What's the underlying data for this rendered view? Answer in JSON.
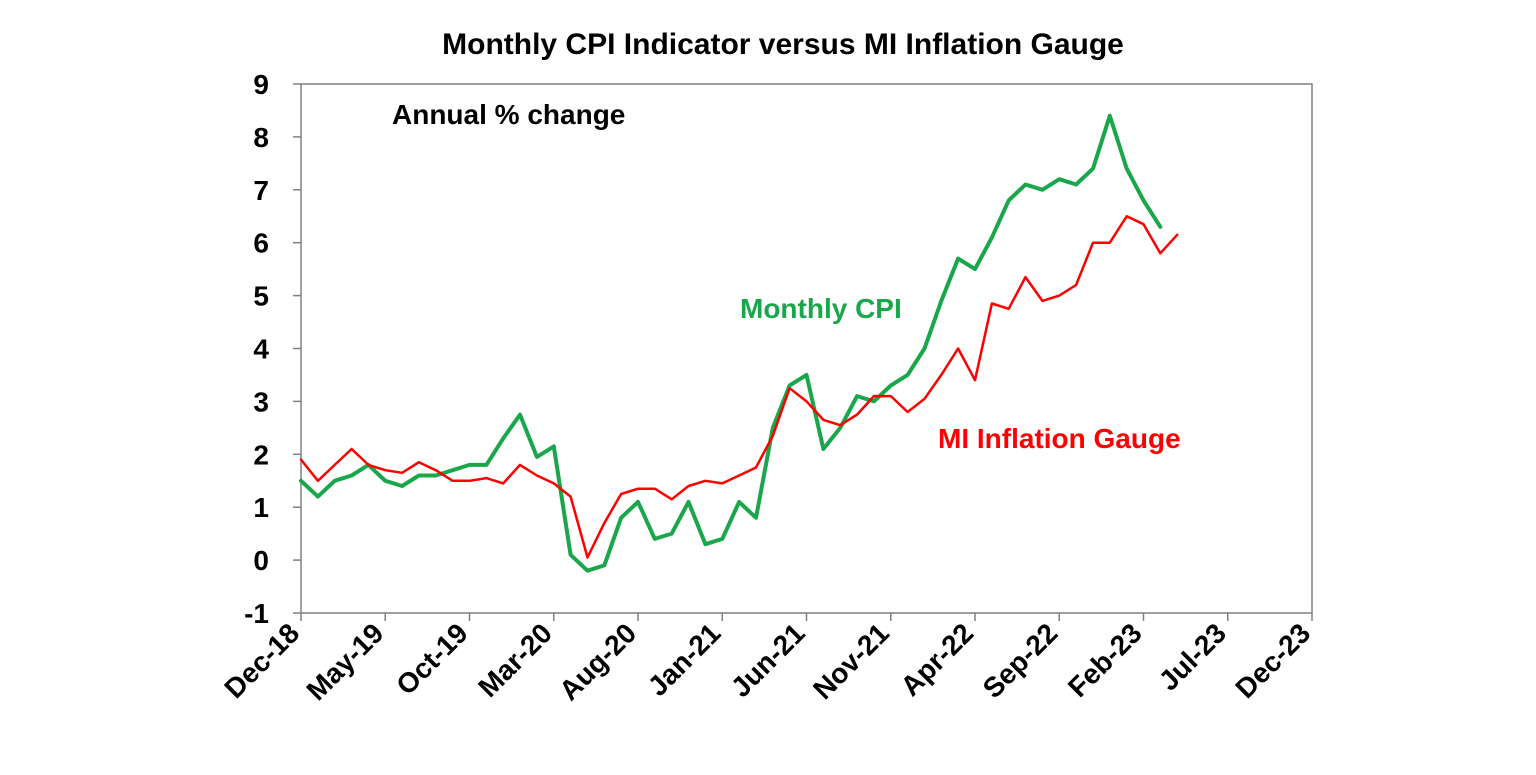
{
  "chart_data": {
    "type": "line",
    "title": "Monthly CPI Indicator versus MI Inflation Gauge",
    "annotation": "Annual % change",
    "ylim": [
      -1,
      9
    ],
    "yticks": [
      -1,
      0,
      1,
      2,
      3,
      4,
      5,
      6,
      7,
      8,
      9
    ],
    "xlim": [
      "Dec-18",
      "Dec-23"
    ],
    "xticks": [
      "Dec-18",
      "May-19",
      "Oct-19",
      "Mar-20",
      "Aug-20",
      "Jan-21",
      "Jun-21",
      "Nov-21",
      "Apr-22",
      "Sep-22",
      "Feb-23",
      "Jul-23",
      "Dec-23"
    ],
    "grid": false,
    "series": [
      {
        "name": "Monthly CPI",
        "color": "#1aa64a",
        "start": "Dec-18",
        "values": [
          1.5,
          1.2,
          1.5,
          1.6,
          1.8,
          1.5,
          1.4,
          1.6,
          1.6,
          1.7,
          1.8,
          1.8,
          2.3,
          2.75,
          1.95,
          2.15,
          0.1,
          -0.2,
          -0.1,
          0.8,
          1.1,
          0.4,
          0.5,
          1.1,
          0.3,
          0.4,
          1.1,
          0.8,
          2.5,
          3.3,
          3.5,
          2.1,
          2.5,
          3.1,
          3.0,
          3.3,
          3.5,
          4.0,
          4.9,
          5.7,
          5.5,
          6.1,
          6.8,
          7.1,
          7.0,
          7.2,
          7.1,
          7.4,
          8.4,
          7.4,
          6.8,
          6.3
        ]
      },
      {
        "name": "MI Inflation Gauge",
        "color": "#ff0000",
        "start": "Dec-18",
        "values": [
          1.9,
          1.5,
          1.8,
          2.1,
          1.8,
          1.7,
          1.65,
          1.85,
          1.7,
          1.5,
          1.5,
          1.55,
          1.45,
          1.8,
          1.6,
          1.45,
          1.2,
          0.05,
          0.7,
          1.25,
          1.35,
          1.35,
          1.15,
          1.4,
          1.5,
          1.45,
          1.6,
          1.75,
          2.35,
          3.25,
          3.0,
          2.65,
          2.55,
          2.75,
          3.1,
          3.1,
          2.8,
          3.05,
          3.5,
          4.0,
          3.4,
          4.85,
          4.75,
          5.35,
          4.9,
          5.0,
          5.2,
          6.0,
          6.0,
          6.5,
          6.35,
          5.8,
          6.15
        ]
      }
    ]
  }
}
